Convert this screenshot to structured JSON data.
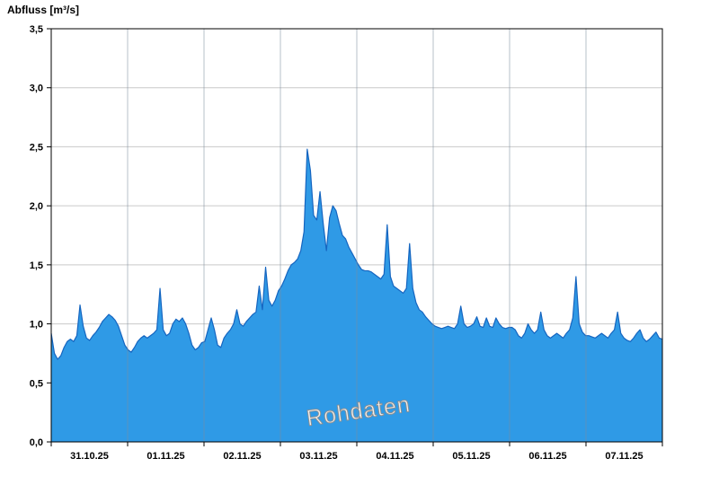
{
  "chart_data": {
    "type": "area",
    "title": "Abfluss [m³/s]",
    "watermark": "Rohdaten",
    "ylabel": "Abfluss [m³/s]",
    "ylim": [
      0,
      3.5
    ],
    "ytick_step": 0.5,
    "ytick_labels": [
      "0,0",
      "0,5",
      "1,0",
      "1,5",
      "2,0",
      "2,5",
      "3,0",
      "3,5"
    ],
    "x_day_labels": [
      "31.10.25",
      "01.11.25",
      "02.11.25",
      "03.11.25",
      "04.11.25",
      "05.11.25",
      "06.11.25",
      "07.11.25"
    ],
    "samples_per_day": 24,
    "grid": "on",
    "values": [
      0.92,
      0.75,
      0.7,
      0.73,
      0.8,
      0.85,
      0.87,
      0.85,
      0.9,
      1.16,
      0.98,
      0.88,
      0.86,
      0.9,
      0.93,
      0.97,
      1.02,
      1.05,
      1.08,
      1.06,
      1.03,
      0.98,
      0.9,
      0.82,
      0.78,
      0.76,
      0.8,
      0.85,
      0.88,
      0.9,
      0.88,
      0.9,
      0.92,
      0.95,
      1.3,
      0.95,
      0.9,
      0.92,
      1.0,
      1.04,
      1.02,
      1.05,
      1.0,
      0.92,
      0.82,
      0.78,
      0.8,
      0.84,
      0.85,
      0.95,
      1.05,
      0.95,
      0.82,
      0.8,
      0.88,
      0.92,
      0.95,
      1.0,
      1.12,
      1.0,
      0.98,
      1.02,
      1.05,
      1.08,
      1.1,
      1.32,
      1.12,
      1.48,
      1.2,
      1.15,
      1.2,
      1.28,
      1.32,
      1.38,
      1.45,
      1.5,
      1.52,
      1.55,
      1.62,
      1.78,
      2.48,
      2.3,
      1.92,
      1.88,
      2.12,
      1.85,
      1.62,
      1.9,
      2.0,
      1.96,
      1.85,
      1.75,
      1.72,
      1.65,
      1.6,
      1.55,
      1.5,
      1.46,
      1.45,
      1.45,
      1.44,
      1.42,
      1.4,
      1.38,
      1.42,
      1.84,
      1.4,
      1.32,
      1.3,
      1.28,
      1.26,
      1.3,
      1.68,
      1.3,
      1.18,
      1.12,
      1.1,
      1.06,
      1.03,
      1.0,
      0.98,
      0.97,
      0.96,
      0.97,
      0.98,
      0.97,
      0.96,
      1.0,
      1.15,
      1.0,
      0.97,
      0.98,
      1.0,
      1.06,
      0.98,
      0.97,
      1.05,
      0.98,
      0.97,
      1.05,
      1.0,
      0.97,
      0.96,
      0.97,
      0.97,
      0.95,
      0.9,
      0.88,
      0.92,
      1.0,
      0.95,
      0.92,
      0.95,
      1.1,
      0.95,
      0.9,
      0.88,
      0.9,
      0.92,
      0.9,
      0.88,
      0.92,
      0.95,
      1.05,
      1.4,
      1.0,
      0.93,
      0.9,
      0.9,
      0.89,
      0.88,
      0.9,
      0.92,
      0.9,
      0.88,
      0.92,
      0.95,
      1.1,
      0.92,
      0.88,
      0.86,
      0.85,
      0.88,
      0.92,
      0.95,
      0.88,
      0.85,
      0.87,
      0.9,
      0.93,
      0.88,
      0.87
    ],
    "colors": {
      "area_fill": "#2f9ae6",
      "area_line": "#1565c0",
      "grid_h": "#c9c9c9",
      "grid_v": "#7e8da0",
      "frame": "#000000",
      "tick_text": "#000000",
      "watermark_fill": "#efefef",
      "watermark_stroke": "#8e8e8e"
    }
  }
}
